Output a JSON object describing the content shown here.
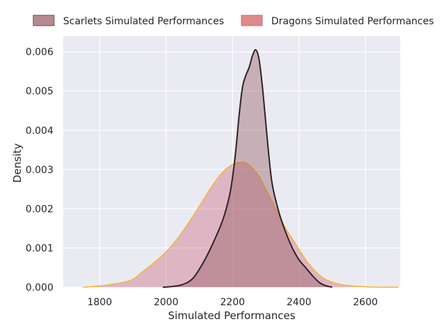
{
  "chart_data": {
    "type": "area",
    "xlabel": "Simulated Performances",
    "ylabel": "Density",
    "xlim": [
      1690,
      2705
    ],
    "ylim": [
      0,
      0.0064
    ],
    "x_ticks": [
      {
        "value": 1800,
        "label": "1800"
      },
      {
        "value": 2000,
        "label": "2000"
      },
      {
        "value": 2200,
        "label": "2200"
      },
      {
        "value": 2400,
        "label": "2400"
      },
      {
        "value": 2600,
        "label": "2600"
      }
    ],
    "y_ticks": [
      {
        "value": 0.0,
        "label": "0.000"
      },
      {
        "value": 0.001,
        "label": "0.001"
      },
      {
        "value": 0.002,
        "label": "0.002"
      },
      {
        "value": 0.003,
        "label": "0.003"
      },
      {
        "value": 0.004,
        "label": "0.004"
      },
      {
        "value": 0.005,
        "label": "0.005"
      },
      {
        "value": 0.006,
        "label": "0.006"
      }
    ],
    "grid": true,
    "legend_position": "top, outside plot, horizontal",
    "series": [
      {
        "name": "Dragons Simulated Performances",
        "fill_color": "#c9566e",
        "fill_opacity": 0.35,
        "line_color": "#f5b430",
        "points": [
          [
            1750,
            0.0
          ],
          [
            1800,
            3e-05
          ],
          [
            1840,
            8e-05
          ],
          [
            1870,
            0.00012
          ],
          [
            1900,
            0.0002
          ],
          [
            1930,
            0.0004
          ],
          [
            1960,
            0.0006
          ],
          [
            2000,
            0.0009
          ],
          [
            2040,
            0.0013
          ],
          [
            2080,
            0.0018
          ],
          [
            2110,
            0.0022
          ],
          [
            2140,
            0.0026
          ],
          [
            2170,
            0.00293
          ],
          [
            2200,
            0.00313
          ],
          [
            2220,
            0.00318
          ],
          [
            2240,
            0.00317
          ],
          [
            2260,
            0.00303
          ],
          [
            2280,
            0.00282
          ],
          [
            2300,
            0.0025
          ],
          [
            2330,
            0.002
          ],
          [
            2360,
            0.0015
          ],
          [
            2390,
            0.0011
          ],
          [
            2420,
            0.0007
          ],
          [
            2450,
            0.0004
          ],
          [
            2480,
            0.0002
          ],
          [
            2520,
            8e-05
          ],
          [
            2560,
            3e-05
          ],
          [
            2600,
            1e-05
          ],
          [
            2650,
            0.0
          ],
          [
            2700,
            0.0
          ]
        ]
      },
      {
        "name": "Scarlets Simulated Performances",
        "fill_color": "#8f4e56",
        "fill_opacity": 0.38,
        "line_color": "#2e2226",
        "points": [
          [
            1990,
            0.0
          ],
          [
            2020,
            2e-05
          ],
          [
            2050,
            7e-05
          ],
          [
            2080,
            0.00022
          ],
          [
            2110,
            0.0006
          ],
          [
            2140,
            0.0011
          ],
          [
            2170,
            0.0017
          ],
          [
            2190,
            0.0023
          ],
          [
            2200,
            0.0028
          ],
          [
            2210,
            0.0035
          ],
          [
            2220,
            0.0044
          ],
          [
            2230,
            0.0051
          ],
          [
            2240,
            0.0054
          ],
          [
            2250,
            0.0056
          ],
          [
            2260,
            0.0059
          ],
          [
            2270,
            0.00605
          ],
          [
            2280,
            0.0058
          ],
          [
            2290,
            0.0051
          ],
          [
            2300,
            0.0042
          ],
          [
            2310,
            0.0033
          ],
          [
            2320,
            0.0026
          ],
          [
            2340,
            0.0019
          ],
          [
            2360,
            0.0014
          ],
          [
            2380,
            0.001
          ],
          [
            2400,
            0.0007
          ],
          [
            2420,
            0.0005
          ],
          [
            2440,
            0.0003
          ],
          [
            2460,
            0.00013
          ],
          [
            2480,
            4e-05
          ],
          [
            2500,
            0.0
          ]
        ]
      }
    ]
  },
  "legend": {
    "items": [
      {
        "label": "Scarlets Simulated Performances",
        "color": "#b58a91",
        "edge": "#6b4b50"
      },
      {
        "label": "Dragons Simulated Performances",
        "color": "#e08a8a",
        "edge": "#c46f6f"
      }
    ]
  },
  "colors": {
    "plot_background": "#eaeaf2",
    "grid": "#ffffff",
    "text": "#262626"
  }
}
